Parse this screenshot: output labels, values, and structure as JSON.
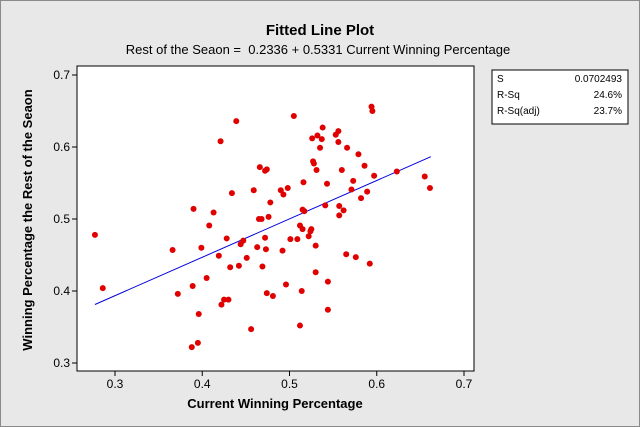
{
  "chart_data": {
    "type": "scatter",
    "title": "Fitted Line Plot",
    "subtitle": "Rest of the Seaon =  0.2336 + 0.5331 Current Winning Percentage",
    "xlabel": "Current Winning Percentage",
    "ylabel": "Winning Percentage the Rest of the Seaon",
    "xlim": [
      0.25,
      0.7
    ],
    "ylim": [
      0.3,
      0.7
    ],
    "xticks": [
      "0.3",
      "0.4",
      "0.5",
      "0.6",
      "0.7"
    ],
    "yticks": [
      "0.3",
      "0.4",
      "0.5",
      "0.6",
      "0.7"
    ],
    "grid": false,
    "point_color": "#e00000",
    "line_color": "#0000dd",
    "fit_line": {
      "intercept": 0.2336,
      "slope": 0.5331,
      "x_range": [
        0.277,
        0.662
      ]
    },
    "stats": [
      {
        "label": "S",
        "value": "0.0702493"
      },
      {
        "label": "R-Sq",
        "value": "24.6%"
      },
      {
        "label": "R-Sq(adj)",
        "value": "23.7%"
      }
    ],
    "points": [
      [
        0.277,
        0.478
      ],
      [
        0.286,
        0.404
      ],
      [
        0.366,
        0.457
      ],
      [
        0.372,
        0.396
      ],
      [
        0.388,
        0.322
      ],
      [
        0.389,
        0.407
      ],
      [
        0.39,
        0.514
      ],
      [
        0.395,
        0.328
      ],
      [
        0.396,
        0.368
      ],
      [
        0.399,
        0.46
      ],
      [
        0.405,
        0.418
      ],
      [
        0.408,
        0.491
      ],
      [
        0.413,
        0.509
      ],
      [
        0.419,
        0.449
      ],
      [
        0.421,
        0.608
      ],
      [
        0.422,
        0.381
      ],
      [
        0.425,
        0.388
      ],
      [
        0.428,
        0.473
      ],
      [
        0.43,
        0.388
      ],
      [
        0.432,
        0.433
      ],
      [
        0.434,
        0.536
      ],
      [
        0.439,
        0.636
      ],
      [
        0.442,
        0.435
      ],
      [
        0.444,
        0.465
      ],
      [
        0.447,
        0.47
      ],
      [
        0.451,
        0.446
      ],
      [
        0.456,
        0.347
      ],
      [
        0.459,
        0.54
      ],
      [
        0.463,
        0.461
      ],
      [
        0.465,
        0.5
      ],
      [
        0.466,
        0.572
      ],
      [
        0.468,
        0.5
      ],
      [
        0.469,
        0.434
      ],
      [
        0.472,
        0.474
      ],
      [
        0.472,
        0.567
      ],
      [
        0.473,
        0.458
      ],
      [
        0.474,
        0.569
      ],
      [
        0.474,
        0.397
      ],
      [
        0.476,
        0.503
      ],
      [
        0.478,
        0.523
      ],
      [
        0.481,
        0.393
      ],
      [
        0.49,
        0.54
      ],
      [
        0.492,
        0.456
      ],
      [
        0.493,
        0.534
      ],
      [
        0.496,
        0.409
      ],
      [
        0.498,
        0.543
      ],
      [
        0.501,
        0.472
      ],
      [
        0.505,
        0.643
      ],
      [
        0.509,
        0.472
      ],
      [
        0.512,
        0.491
      ],
      [
        0.512,
        0.352
      ],
      [
        0.514,
        0.4
      ],
      [
        0.515,
        0.513
      ],
      [
        0.515,
        0.486
      ],
      [
        0.516,
        0.551
      ],
      [
        0.517,
        0.511
      ],
      [
        0.522,
        0.476
      ],
      [
        0.524,
        0.483
      ],
      [
        0.525,
        0.486
      ],
      [
        0.526,
        0.612
      ],
      [
        0.527,
        0.58
      ],
      [
        0.528,
        0.577
      ],
      [
        0.53,
        0.463
      ],
      [
        0.53,
        0.426
      ],
      [
        0.531,
        0.568
      ],
      [
        0.532,
        0.616
      ],
      [
        0.535,
        0.599
      ],
      [
        0.537,
        0.611
      ],
      [
        0.538,
        0.627
      ],
      [
        0.541,
        0.519
      ],
      [
        0.543,
        0.549
      ],
      [
        0.544,
        0.374
      ],
      [
        0.544,
        0.413
      ],
      [
        0.553,
        0.617
      ],
      [
        0.556,
        0.622
      ],
      [
        0.556,
        0.607
      ],
      [
        0.557,
        0.518
      ],
      [
        0.557,
        0.505
      ],
      [
        0.56,
        0.568
      ],
      [
        0.562,
        0.512
      ],
      [
        0.565,
        0.451
      ],
      [
        0.566,
        0.599
      ],
      [
        0.571,
        0.541
      ],
      [
        0.573,
        0.553
      ],
      [
        0.576,
        0.447
      ],
      [
        0.579,
        0.59
      ],
      [
        0.582,
        0.529
      ],
      [
        0.586,
        0.574
      ],
      [
        0.589,
        0.538
      ],
      [
        0.592,
        0.438
      ],
      [
        0.594,
        0.656
      ],
      [
        0.595,
        0.65
      ],
      [
        0.597,
        0.56
      ],
      [
        0.623,
        0.566
      ],
      [
        0.655,
        0.559
      ],
      [
        0.661,
        0.543
      ]
    ]
  }
}
